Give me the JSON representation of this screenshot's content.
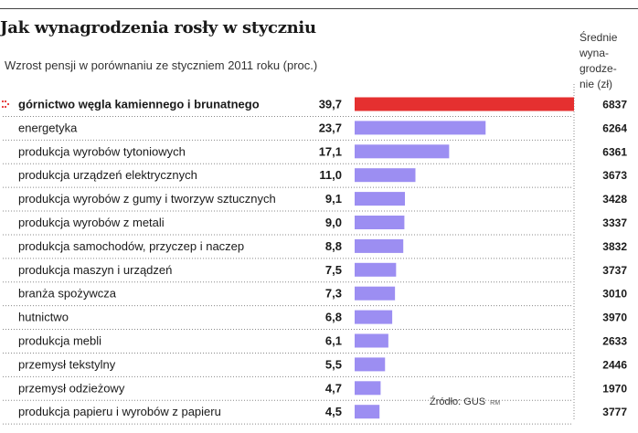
{
  "header": {
    "title": "Jak wynagrodzenia rosły w styczniu",
    "subtitle": "Wzrost pensji w porównaniu ze styczniem 2011 roku (proc.)",
    "right_column_title_lines": [
      "Średnie",
      "wyna-",
      "grodze-",
      "nie (zł)"
    ]
  },
  "footer": {
    "source": "Źródło: GUS",
    "signature": "RM"
  },
  "chart_data": {
    "type": "bar",
    "orientation": "horizontal",
    "title": "Jak wynagrodzenia rosły w styczniu",
    "subtitle": "Wzrost pensji w porównaniu ze styczniem 2011 roku (proc.)",
    "categories": [
      "górnictwo węgla kamiennego i brunatnego",
      "energetyka",
      "produkcja wyrobów tytoniowych",
      "produkcja urządzeń elektrycznych",
      "produkcja wyrobów z gumy i tworzyw sztucznych",
      "produkcja wyrobów z metali",
      "produkcja samochodów, przyczep i naczep",
      "produkcja maszyn i urządzeń",
      "branża spożywcza",
      "hutnictwo",
      "produkcja mebli",
      "przemysł tekstylny",
      "przemysł odzieżowy",
      "produkcja papieru i wyrobów z papieru"
    ],
    "values": [
      39.7,
      23.7,
      17.1,
      11.0,
      9.1,
      9.0,
      8.8,
      7.5,
      7.3,
      6.8,
      6.1,
      5.5,
      4.7,
      4.5
    ],
    "value_labels": [
      "39,7",
      "23,7",
      "17,1",
      "11,0",
      "9,1",
      "9,0",
      "8,8",
      "7,5",
      "7,3",
      "6,8",
      "6,1",
      "5,5",
      "4,7",
      "4,5"
    ],
    "salaries": [
      "6837",
      "6264",
      "6361",
      "3673",
      "3428",
      "3337",
      "3832",
      "3737",
      "3010",
      "3970",
      "2633",
      "2446",
      "1970",
      "3777"
    ],
    "highlight_index": 0,
    "xlim": [
      0,
      39.7
    ],
    "colors": {
      "highlight": "#e53030",
      "bar": "#9c8ef2",
      "marker": "#e53030",
      "dotted": "#888888"
    },
    "marker_icon": "dotted-arrow-icon"
  }
}
